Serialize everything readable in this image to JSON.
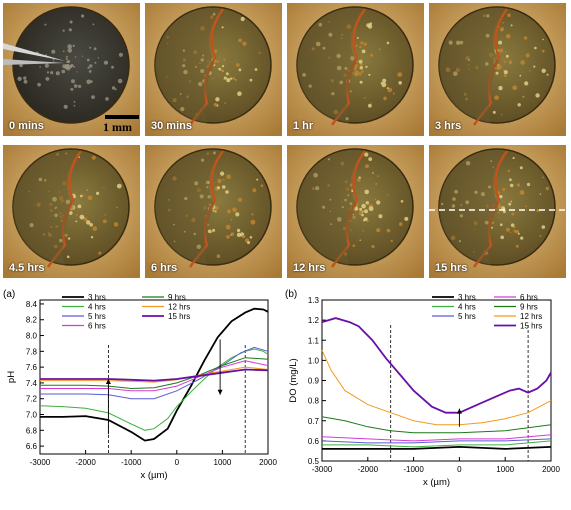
{
  "photos": [
    {
      "label": "0 mins"
    },
    {
      "label": "30 mins"
    },
    {
      "label": "1 hr"
    },
    {
      "label": "3 hrs"
    },
    {
      "label": "4.5 hrs"
    },
    {
      "label": "6 hrs"
    },
    {
      "label": "12 hrs"
    },
    {
      "label": "15 hrs"
    }
  ],
  "scale_bar_label": "1 mm",
  "chart_data": [
    {
      "panel": "(a)",
      "type": "line",
      "xlabel": "x (µm)",
      "ylabel": "pH",
      "xlim": [
        -3000,
        2000
      ],
      "ylim": [
        6.5,
        8.45
      ],
      "xticks": [
        -3000,
        -2000,
        -1000,
        0,
        1000,
        2000
      ],
      "yticks": [
        6.6,
        6.8,
        7.0,
        7.2,
        7.4,
        7.6,
        7.8,
        8.0,
        8.2,
        8.4
      ],
      "legend_position": "top-center",
      "series": [
        {
          "name": "3 hrs",
          "color": "#000000",
          "x": [
            -3000,
            -2500,
            -2000,
            -1500,
            -1000,
            -700,
            -500,
            -200,
            0,
            300,
            600,
            900,
            1200,
            1500,
            1700,
            1900,
            2000
          ],
          "y": [
            6.97,
            6.97,
            6.98,
            6.93,
            6.78,
            6.67,
            6.69,
            6.82,
            7.05,
            7.35,
            7.68,
            7.98,
            8.18,
            8.29,
            8.34,
            8.33,
            8.3
          ]
        },
        {
          "name": "4 hrs",
          "color": "#3db13d",
          "x": [
            -3000,
            -2500,
            -2000,
            -1500,
            -1000,
            -700,
            -500,
            -200,
            0,
            300,
            600,
            900,
            1200,
            1500,
            1700,
            1900,
            2000
          ],
          "y": [
            7.11,
            7.1,
            7.08,
            7.02,
            6.88,
            6.8,
            6.82,
            6.95,
            7.1,
            7.28,
            7.45,
            7.6,
            7.72,
            7.8,
            7.83,
            7.8,
            7.76
          ]
        },
        {
          "name": "5 hrs",
          "color": "#5b5bd6",
          "x": [
            -3000,
            -2500,
            -2000,
            -1500,
            -1000,
            -500,
            0,
            500,
            1000,
            1400,
            1700,
            2000
          ],
          "y": [
            7.26,
            7.26,
            7.26,
            7.25,
            7.2,
            7.2,
            7.3,
            7.45,
            7.62,
            7.78,
            7.85,
            7.8
          ]
        },
        {
          "name": "6 hrs",
          "color": "#d63ad6",
          "x": [
            -3000,
            -2500,
            -2000,
            -1500,
            -1000,
            -500,
            0,
            500,
            1000,
            1500,
            2000
          ],
          "y": [
            7.33,
            7.33,
            7.33,
            7.33,
            7.3,
            7.3,
            7.36,
            7.48,
            7.6,
            7.68,
            7.62
          ]
        },
        {
          "name": "9 hrs",
          "color": "#1a7a1a",
          "x": [
            -3000,
            -2500,
            -2000,
            -1500,
            -1000,
            -500,
            0,
            500,
            1000,
            1500,
            2000
          ],
          "y": [
            7.37,
            7.37,
            7.37,
            7.36,
            7.33,
            7.34,
            7.4,
            7.5,
            7.62,
            7.72,
            7.7
          ]
        },
        {
          "name": "12 hrs",
          "color": "#f39a1c",
          "x": [
            -3000,
            -2500,
            -2000,
            -1500,
            -1000,
            -500,
            0,
            500,
            1000,
            1500,
            2000
          ],
          "y": [
            7.43,
            7.43,
            7.43,
            7.43,
            7.42,
            7.41,
            7.44,
            7.5,
            7.55,
            7.6,
            7.57
          ]
        },
        {
          "name": "15 hrs",
          "color": "#6a0fa8",
          "x": [
            -3000,
            -2500,
            -2000,
            -1500,
            -1000,
            -500,
            0,
            500,
            1000,
            1500,
            2000
          ],
          "y": [
            7.45,
            7.45,
            7.45,
            7.45,
            7.44,
            7.43,
            7.45,
            7.49,
            7.53,
            7.57,
            7.56
          ]
        }
      ]
    },
    {
      "panel": "(b)",
      "type": "line",
      "xlabel": "x (µm)",
      "ylabel": "DO (mg/L)",
      "xlim": [
        -3000,
        2000
      ],
      "ylim": [
        0.5,
        1.3
      ],
      "xticks": [
        -3000,
        -2000,
        -1000,
        0,
        1000,
        2000
      ],
      "yticks": [
        0.5,
        0.6,
        0.7,
        0.8,
        0.9,
        1.0,
        1.1,
        1.2,
        1.3
      ],
      "legend_position": "top-right",
      "series": [
        {
          "name": "3 hrs",
          "color": "#000000",
          "x": [
            -3000,
            -2000,
            -1000,
            0,
            1000,
            2000
          ],
          "y": [
            0.56,
            0.56,
            0.56,
            0.57,
            0.56,
            0.57
          ]
        },
        {
          "name": "4 hrs",
          "color": "#3db13d",
          "x": [
            -3000,
            -2000,
            -1000,
            0,
            1000,
            2000
          ],
          "y": [
            0.58,
            0.58,
            0.57,
            0.58,
            0.58,
            0.6
          ]
        },
        {
          "name": "5 hrs",
          "color": "#5b5bd6",
          "x": [
            -3000,
            -2000,
            -1000,
            0,
            1000,
            2000
          ],
          "y": [
            0.6,
            0.59,
            0.59,
            0.6,
            0.6,
            0.61
          ]
        },
        {
          "name": "6 hrs",
          "color": "#d63ad6",
          "x": [
            -3000,
            -2000,
            -1000,
            0,
            1000,
            2000
          ],
          "y": [
            0.62,
            0.61,
            0.6,
            0.61,
            0.61,
            0.63
          ]
        },
        {
          "name": "9 hrs",
          "color": "#1a7a1a",
          "x": [
            -3000,
            -2500,
            -2000,
            -1500,
            -1000,
            0,
            1000,
            2000
          ],
          "y": [
            0.72,
            0.7,
            0.67,
            0.65,
            0.64,
            0.64,
            0.65,
            0.68
          ]
        },
        {
          "name": "12 hrs",
          "color": "#f39a1c",
          "x": [
            -3000,
            -2800,
            -2500,
            -2000,
            -1500,
            -1000,
            -500,
            0,
            500,
            1000,
            1500,
            2000
          ],
          "y": [
            1.05,
            0.95,
            0.85,
            0.78,
            0.74,
            0.7,
            0.68,
            0.68,
            0.69,
            0.71,
            0.74,
            0.8
          ]
        },
        {
          "name": "15 hrs",
          "color": "#6a0fa8",
          "x": [
            -3000,
            -2700,
            -2400,
            -2200,
            -1900,
            -1600,
            -1300,
            -1000,
            -600,
            -300,
            0,
            400,
            800,
            1100,
            1300,
            1500,
            1700,
            1900,
            2000
          ],
          "y": [
            1.19,
            1.21,
            1.19,
            1.17,
            1.1,
            1.01,
            0.93,
            0.85,
            0.77,
            0.74,
            0.74,
            0.78,
            0.82,
            0.85,
            0.86,
            0.84,
            0.86,
            0.9,
            0.94
          ]
        }
      ]
    }
  ]
}
